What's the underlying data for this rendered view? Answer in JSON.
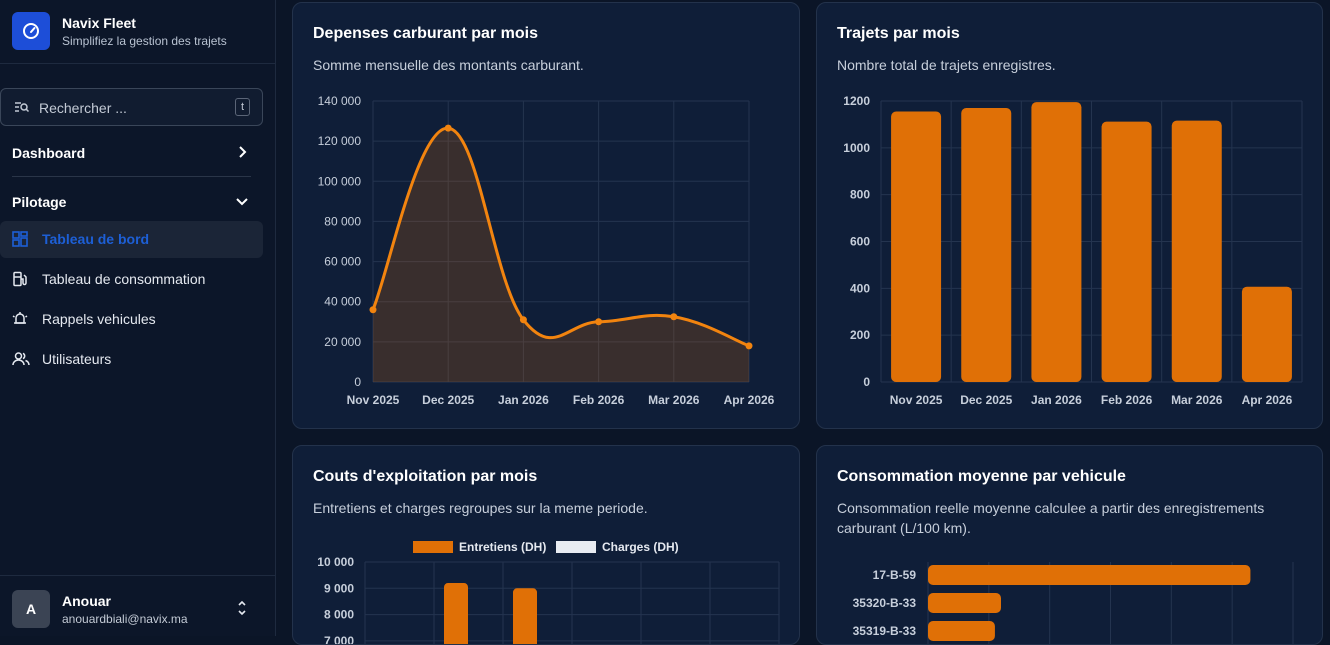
{
  "sidebar": {
    "brand_title": "Navix Fleet",
    "brand_subtitle": "Simplifiez la gestion des trajets",
    "search_placeholder": "Rechercher ...",
    "search_shortcut": "t",
    "dashboard_label": "Dashboard",
    "section_label": "Pilotage",
    "items": [
      {
        "label": "Tableau de bord",
        "icon": "dashboard-grid-icon",
        "active": true
      },
      {
        "label": "Tableau de consommation",
        "icon": "fuel-pump-icon",
        "active": false
      },
      {
        "label": "Rappels vehicules",
        "icon": "alarm-bell-icon",
        "active": false
      },
      {
        "label": "Utilisateurs",
        "icon": "users-icon",
        "active": false
      }
    ],
    "user": {
      "initial": "A",
      "name": "Anouar",
      "email": "anouardbiali@navix.ma"
    }
  },
  "colors": {
    "accent": "#1d5fd6",
    "orange": "#e07006",
    "line": "#f2840f"
  },
  "cards": {
    "fuel": {
      "title": "Depenses carburant par mois",
      "subtitle": "Somme mensuelle des montants carburant."
    },
    "trips": {
      "title": "Trajets par mois",
      "subtitle": "Nombre total de trajets enregistres."
    },
    "costs": {
      "title": "Couts d'exploitation par mois",
      "subtitle": "Entretiens et charges regroupes sur la meme periode."
    },
    "consumption": {
      "title": "Consommation moyenne par vehicule",
      "subtitle": "Consommation reelle moyenne calculee a partir des enregistrements carburant (L/100 km)."
    }
  },
  "chart_data": [
    {
      "type": "area",
      "title": "Depenses carburant par mois",
      "categories": [
        "Nov 2025",
        "Dec 2025",
        "Jan 2026",
        "Feb 2026",
        "Mar 2026",
        "Apr 2026"
      ],
      "values": [
        36000,
        126500,
        31000,
        30000,
        32500,
        18000
      ],
      "ylim": [
        0,
        140000
      ],
      "yticks": [
        "0",
        "20 000",
        "40 000",
        "60 000",
        "80 000",
        "100 000",
        "120 000",
        "140 000"
      ]
    },
    {
      "type": "bar",
      "title": "Trajets par mois",
      "categories": [
        "Nov 2025",
        "Dec 2025",
        "Jan 2026",
        "Feb 2026",
        "Mar 2026",
        "Apr 2026"
      ],
      "values": [
        1155,
        1170,
        1195,
        1112,
        1116,
        407
      ],
      "ylim": [
        0,
        1200
      ],
      "yticks": [
        "0",
        "200",
        "400",
        "600",
        "800",
        "1000",
        "1200"
      ]
    },
    {
      "type": "bar",
      "title": "Couts d'exploitation par mois",
      "legend": [
        "Entretiens (DH)",
        "Charges (DH)"
      ],
      "series": [
        {
          "name": "Entretiens (DH)",
          "values": [
            null,
            9200,
            9000,
            null,
            null,
            null
          ]
        },
        {
          "name": "Charges (DH)",
          "values": [
            null,
            null,
            null,
            null,
            null,
            null
          ]
        }
      ],
      "ylim": [
        0,
        10000
      ],
      "yticks": [
        "7 000",
        "8 000",
        "9 000",
        "10 000"
      ]
    },
    {
      "type": "bar",
      "title": "Consommation moyenne par vehicule",
      "categories": [
        "17-B-59",
        "35320-B-33",
        "35319-B-33"
      ],
      "values": [
        5.3,
        1.2,
        1.1
      ],
      "xlim": [
        0,
        6
      ]
    }
  ]
}
